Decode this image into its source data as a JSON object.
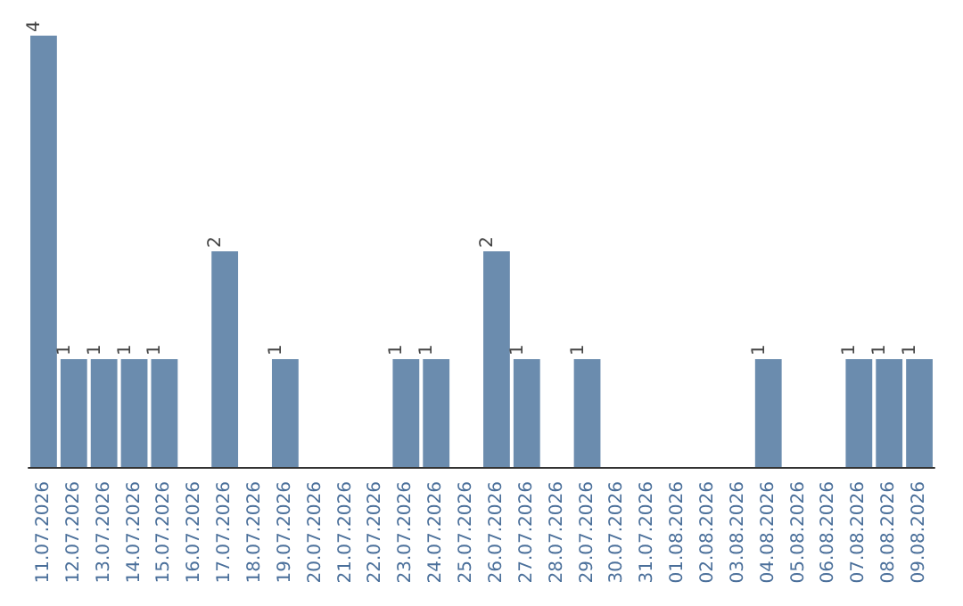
{
  "chart_data": {
    "type": "bar",
    "categories": [
      "11.07.2026",
      "12.07.2026",
      "13.07.2026",
      "14.07.2026",
      "15.07.2026",
      "16.07.2026",
      "17.07.2026",
      "18.07.2026",
      "19.07.2026",
      "20.07.2026",
      "21.07.2026",
      "22.07.2026",
      "23.07.2026",
      "24.07.2026",
      "25.07.2026",
      "26.07.2026",
      "27.07.2026",
      "28.07.2026",
      "29.07.2026",
      "30.07.2026",
      "31.07.2026",
      "01.08.2026",
      "02.08.2026",
      "03.08.2026",
      "04.08.2026",
      "05.08.2026",
      "06.08.2026",
      "07.08.2026",
      "08.08.2026",
      "09.08.2026"
    ],
    "values": [
      4,
      1,
      1,
      1,
      1,
      0,
      2,
      0,
      1,
      0,
      0,
      0,
      1,
      1,
      0,
      2,
      1,
      0,
      1,
      0,
      0,
      0,
      0,
      0,
      1,
      0,
      0,
      1,
      1,
      1
    ],
    "value_labels": [
      "4",
      "1",
      "1",
      "1",
      "1",
      null,
      "2",
      null,
      "1",
      null,
      null,
      null,
      "1",
      "1",
      null,
      "2",
      "1",
      null,
      "1",
      null,
      null,
      null,
      null,
      null,
      "1",
      null,
      null,
      "1",
      "1",
      "1"
    ],
    "color": "#6b8cae",
    "tick_labels": "x"
  }
}
